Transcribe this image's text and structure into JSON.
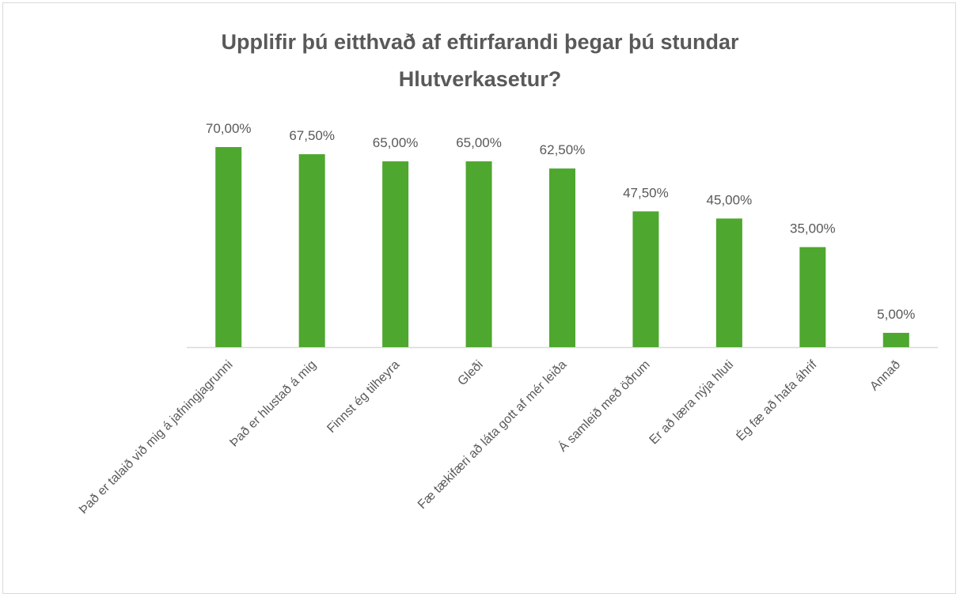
{
  "chart_data": {
    "type": "bar",
    "title": "Upplifir þú eitthvað af eftirfarandi þegar þú stundar Hlutverkasetur?",
    "categories": [
      "Það er talaið við mig á jafningjagrunni",
      "Það er hlustað á mig",
      "Finnst ég tilheyra",
      "Gleði",
      "Fæ tækifæri að láta gott af mér leiða",
      "Á samleið með öðrum",
      "Er að læra nýja hluti",
      "Ég fæ að hafa áhrif",
      "Annað"
    ],
    "values": [
      70,
      67.5,
      65,
      65,
      62.5,
      47.5,
      45,
      35,
      5
    ],
    "value_labels": [
      "70,00%",
      "67,50%",
      "65,00%",
      "65,00%",
      "62,50%",
      "47,50%",
      "45,00%",
      "35,00%",
      "5,00%"
    ],
    "color": "#4ea72e"
  }
}
